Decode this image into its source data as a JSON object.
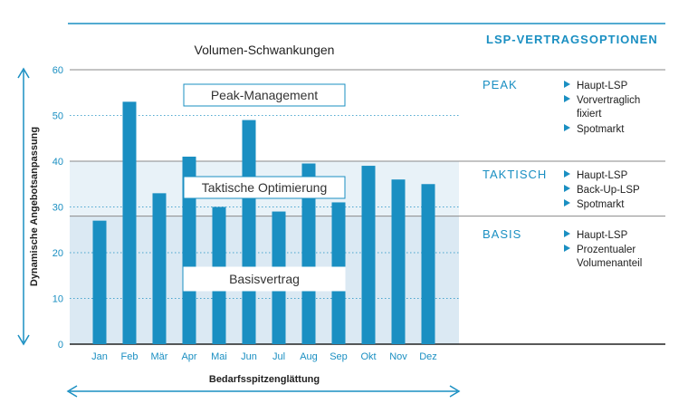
{
  "chart_data": {
    "type": "bar",
    "title": "Volumen-Schwankungen",
    "xlabel": "Bedarfsspitzenglättung",
    "ylabel": "Dynamische Angebotsanpassung",
    "categories": [
      "Jan",
      "Feb",
      "Mär",
      "Apr",
      "Mai",
      "Jun",
      "Jul",
      "Aug",
      "Sep",
      "Okt",
      "Nov",
      "Dez"
    ],
    "values": [
      27,
      53,
      33,
      41,
      30,
      49,
      29,
      39.5,
      31,
      39,
      36,
      35
    ],
    "ylim": [
      0,
      60
    ],
    "yticks": [
      0,
      10,
      20,
      30,
      40,
      50,
      60
    ],
    "bar_color": "#1a8fc2",
    "bands": [
      {
        "label": "Peak-Management",
        "from": 40,
        "to": 60,
        "color": "#ffffff"
      },
      {
        "label": "Taktische Optimierung",
        "from": 28,
        "to": 40,
        "color": "#e8f2f8"
      },
      {
        "label": "Basisvertrag",
        "from": 0,
        "to": 28,
        "color": "#dbe9f3"
      }
    ]
  },
  "options": {
    "title": "LSP-VERTRAGSOPTIONEN",
    "tiers": [
      {
        "name": "PEAK",
        "items": [
          "Haupt-LSP",
          "Vorvertraglich fixiert",
          "Spotmarkt"
        ]
      },
      {
        "name": "TAKTISCH",
        "items": [
          "Haupt-LSP",
          "Back-Up-LSP",
          "Spotmarkt"
        ]
      },
      {
        "name": "BASIS",
        "items": [
          "Haupt-LSP",
          "Prozentualer Volumenanteil"
        ]
      }
    ]
  },
  "colors": {
    "accent": "#1a8fc2",
    "gridline": "#8a8a8a"
  }
}
